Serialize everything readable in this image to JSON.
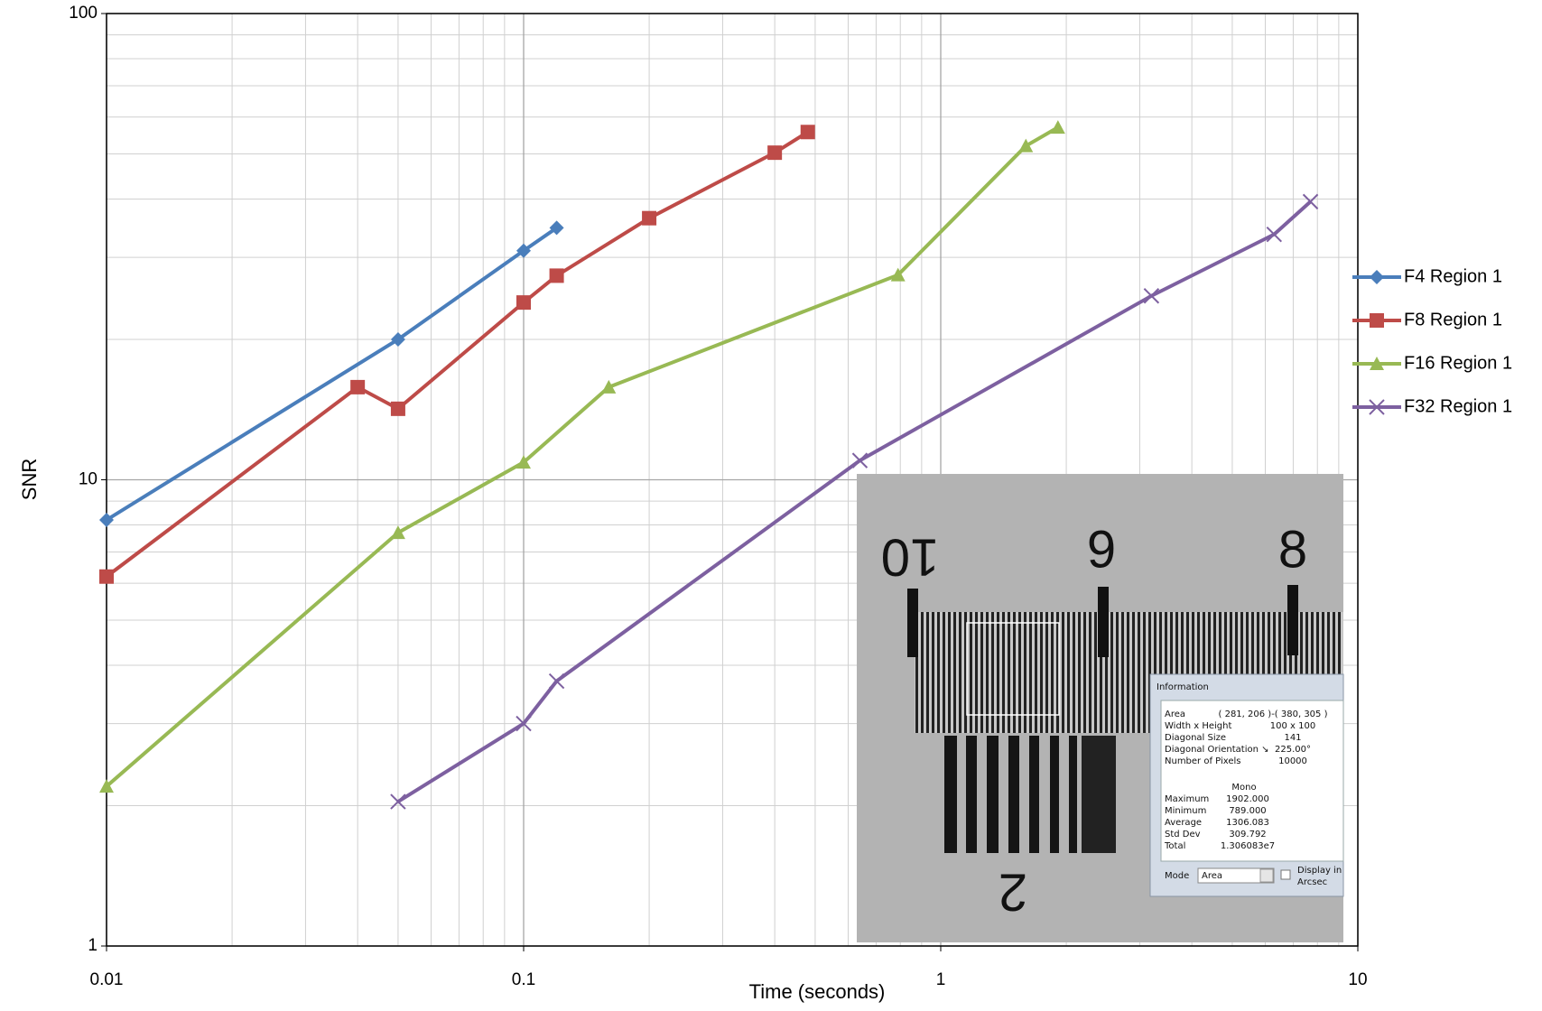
{
  "chart_data": {
    "type": "line",
    "x_label": "Time (seconds)",
    "y_label": "SNR",
    "xscale": "log",
    "yscale": "log",
    "xlim": [
      0.01,
      10
    ],
    "ylim": [
      1,
      100
    ],
    "xticks": [
      0.01,
      0.1,
      1,
      10
    ],
    "yticks": [
      1,
      10,
      100
    ],
    "grid": true,
    "legend": "right",
    "series": [
      {
        "name": "F4 Region 1",
        "color": "#4a7ebb",
        "marker": "diamond",
        "x": [
          0.01,
          0.05,
          0.1,
          0.12
        ],
        "values": [
          8.2,
          20,
          31,
          34.7
        ]
      },
      {
        "name": "F8 Region 1",
        "color": "#be4b48",
        "marker": "square",
        "x": [
          0.01,
          0.04,
          0.05,
          0.1,
          0.12,
          0.2,
          0.4,
          0.48
        ],
        "values": [
          6.2,
          15.8,
          14.2,
          24,
          27.4,
          36.4,
          50.3,
          55.7
        ]
      },
      {
        "name": "F16 Region 1",
        "color": "#98b954",
        "marker": "triangle",
        "x": [
          0.01,
          0.05,
          0.1,
          0.16,
          0.79,
          1.6,
          1.91
        ],
        "values": [
          2.2,
          7.7,
          10.9,
          15.8,
          27.5,
          52,
          57
        ]
      },
      {
        "name": "F32 Region 1",
        "color": "#7d60a0",
        "marker": "x",
        "x": [
          0.05,
          0.1,
          0.12,
          0.64,
          3.2,
          6.3,
          7.7
        ],
        "values": [
          2.04,
          3.0,
          3.7,
          11.0,
          24.8,
          33.6,
          39.5
        ]
      }
    ]
  },
  "inset": {
    "ruler_labels": [
      "10",
      "9",
      "8",
      "2"
    ],
    "dialog": {
      "title": "Information",
      "rows": [
        [
          "Area",
          "( 281, 206 )-( 380, 305 )"
        ],
        [
          "Width x Height",
          "100 x 100"
        ],
        [
          "Diagonal Size",
          "141"
        ],
        [
          "Diagonal Orientation ↘",
          "225.00°"
        ],
        [
          "Number of Pixels",
          "10000"
        ]
      ],
      "stats_header": "Mono",
      "stats": [
        [
          "Maximum",
          "1902.000"
        ],
        [
          "Minimum",
          "789.000"
        ],
        [
          "Average",
          "1306.083"
        ],
        [
          "Std Dev",
          "309.792"
        ],
        [
          "Total",
          "1.306083e7"
        ]
      ],
      "mode_label": "Mode",
      "mode_value": "Area",
      "checkbox_label": [
        "Display in",
        "Arcsec"
      ]
    }
  }
}
